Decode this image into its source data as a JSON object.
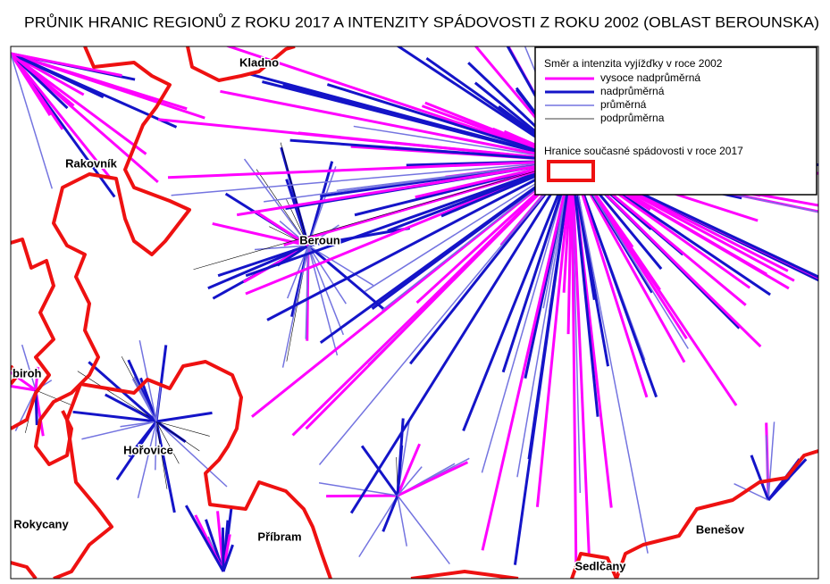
{
  "title": "PRŮNIK HRANIC REGIONŮ Z ROKU 2017 A INTENZITY SPÁDOVOSTI Z ROKU 2002 (OBLAST BEROUNSKA)",
  "legend": {
    "title": "Směr a intenzita vyjížďky v roce 2002",
    "items": [
      "vysoce nadprůměrná",
      "nadprůměrná",
      "průměrná",
      "podprůměrna"
    ],
    "boundary_title": "Hranice současné spádovosti v roce 2017"
  },
  "places": [
    "Kladno",
    "Rakovník",
    "Beroun",
    "biroh",
    "Hořovice",
    "Rokycany",
    "Příbram",
    "Benešov",
    "Sedlčany"
  ]
}
